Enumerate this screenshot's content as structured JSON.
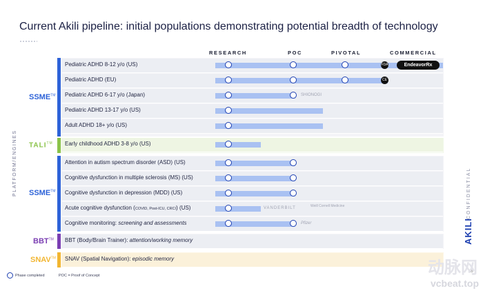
{
  "title": "Current Akili pipeline: initial populations demonstrating potential breadth of technology",
  "phases": [
    "RESEARCH",
    "POC",
    "PIVOTAL",
    "COMMERCIAL"
  ],
  "side_label": "PLATFORM/ENGINES",
  "engines": {
    "ssme_top": {
      "label": "SSME",
      "mark": "TM"
    },
    "tali": {
      "label": "TALI",
      "mark": "TM"
    },
    "ssme_bottom": {
      "label": "SSME",
      "mark": "TM"
    },
    "bbt": {
      "label": "BBT",
      "mark": "TM"
    },
    "snav": {
      "label": "SNAV",
      "mark": "TM"
    }
  },
  "rows": [
    {
      "label": "Pediatric ADHD 8-12 y/o (US)",
      "progress": 4,
      "dots": [
        1,
        2,
        3
      ],
      "partner": "EndeavorRx",
      "badge": "FDA"
    },
    {
      "label": "Pediatric ADHD (EU)",
      "progress": 3,
      "dots": [
        1,
        2,
        3
      ],
      "badge": "CE"
    },
    {
      "label": "Pediatric ADHD 6-17 y/o (Japan)",
      "progress": 2,
      "dots": [
        1,
        2
      ],
      "partner": "SHIONOGI"
    },
    {
      "label": "Pediatric ADHD 13-17 y/o (US)",
      "progress": 2,
      "dots": [
        1
      ]
    },
    {
      "label": "Adult ADHD 18+ y/o (US)",
      "progress": 2,
      "dots": [
        1
      ]
    },
    {
      "label": "Early childhood ADHD 3-8  y/o (US)",
      "progress": 1,
      "dots": [
        1
      ]
    },
    {
      "label": "Attention in autism spectrum disorder (ASD) (US)",
      "progress": 2,
      "dots": [
        1,
        2
      ]
    },
    {
      "label": "Cognitive dysfunction in multiple sclerosis (MS) (US)",
      "progress": 2,
      "dots": [
        1,
        2
      ]
    },
    {
      "label": "Cognitive dysfunction in depression (MDD) (US)",
      "progress": 2,
      "dots": [
        1,
        2
      ]
    },
    {
      "label_main": "Acute cognitive dysfunction (",
      "label_small": "COVID, Post-ICU, CRCI",
      "label_end": ") (US)",
      "progress": 1,
      "dots": [
        1
      ],
      "partner": "VANDERBILT",
      "partner2": "Weill Cornell Medicine"
    },
    {
      "label_main": "Cognitive monitoring: ",
      "label_italic": "screening and assessments",
      "progress": 2,
      "dots": [
        1,
        2
      ],
      "partner": "Pfizer"
    },
    {
      "label_main": "BBT (Body/Brain Trainer): ",
      "label_italic": "attention/working memory"
    },
    {
      "label_main": "SNAV (Spatial Navigation): ",
      "label_italic": "episodic memory"
    }
  ],
  "legend": {
    "phase_completed": "Phase completed",
    "poc": "POC = Proof of Concept"
  },
  "confidential": "CONFIDENTIAL",
  "logo": "AKILI",
  "page_number": "35",
  "watermark": {
    "cn": "动脉网",
    "url": "vcbeat.top"
  },
  "colors": {
    "bar": "#a9c1f2",
    "dot": "#1d3fb0",
    "ssme": "#2e63d8",
    "tali": "#8bc34a",
    "bbt": "#7b3fb3",
    "snav": "#f2b632"
  }
}
